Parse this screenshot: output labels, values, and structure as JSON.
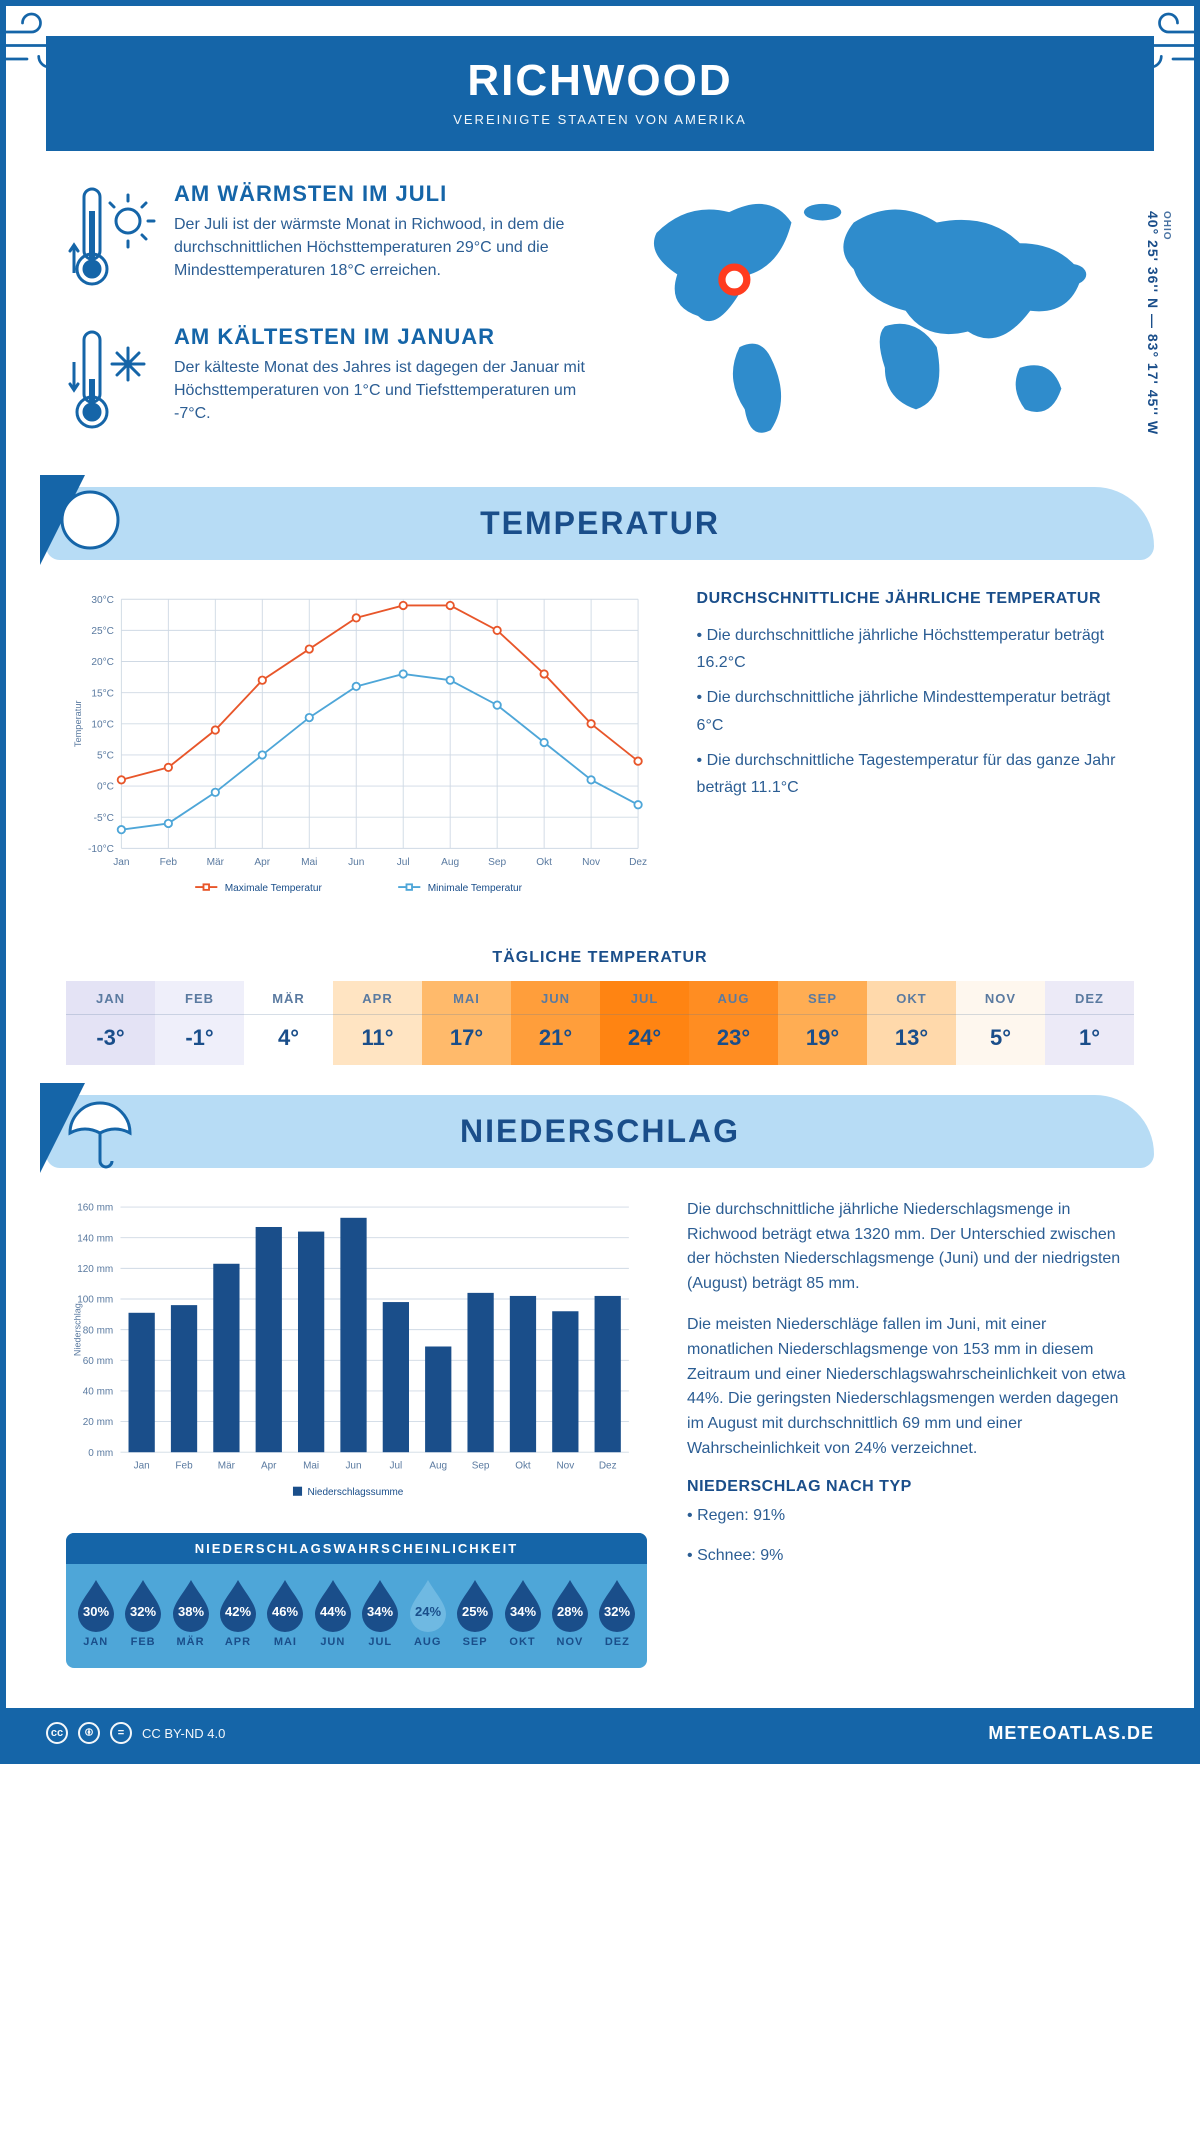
{
  "header": {
    "title": "RICHWOOD",
    "subtitle": "VEREINIGTE STAATEN VON AMERIKA"
  },
  "coordinates": {
    "state": "OHIO",
    "lat": "40° 25' 36'' N",
    "lon": "83° 17' 45'' W"
  },
  "facts": {
    "warm": {
      "title": "AM WÄRMSTEN IM JULI",
      "text": "Der Juli ist der wärmste Monat in Richwood, in dem die durchschnittlichen Höchsttemperaturen 29°C und die Mindesttemperaturen 18°C erreichen."
    },
    "cold": {
      "title": "AM KÄLTESTEN IM JANUAR",
      "text": "Der kälteste Monat des Jahres ist dagegen der Januar mit Höchsttemperaturen von 1°C und Tiefsttemperaturen um -7°C."
    }
  },
  "temperature_section": {
    "banner": "TEMPERATUR",
    "info_title": "DURCHSCHNITTLICHE JÄHRLICHE TEMPERATUR",
    "bullets": [
      "• Die durchschnittliche jährliche Höchsttemperatur beträgt 16.2°C",
      "• Die durchschnittliche jährliche Mindesttemperatur beträgt 6°C",
      "• Die durchschnittliche Tagestemperatur für das ganze Jahr beträgt 11.1°C"
    ],
    "chart": {
      "type": "line",
      "months": [
        "Jan",
        "Feb",
        "Mär",
        "Apr",
        "Mai",
        "Jun",
        "Jul",
        "Aug",
        "Sep",
        "Okt",
        "Nov",
        "Dez"
      ],
      "max_series": {
        "label": "Maximale Temperatur",
        "color": "#e8562a",
        "values": [
          1,
          3,
          9,
          17,
          22,
          27,
          29,
          29,
          25,
          18,
          10,
          4
        ]
      },
      "min_series": {
        "label": "Minimale Temperatur",
        "color": "#4ea6d8",
        "values": [
          -7,
          -6,
          -1,
          5,
          11,
          16,
          18,
          17,
          13,
          7,
          1,
          -3
        ]
      },
      "y_axis": {
        "min": -10,
        "max": 30,
        "step": 5,
        "label": "Temperatur",
        "ticks": [
          "-10°C",
          "-5°C",
          "0°C",
          "5°C",
          "10°C",
          "15°C",
          "20°C",
          "25°C",
          "30°C"
        ]
      },
      "grid_color": "#cfd9e4",
      "background_color": "#ffffff",
      "line_width": 2,
      "marker_size": 4
    },
    "daily_title": "TÄGLICHE TEMPERATUR",
    "daily": [
      {
        "m": "JAN",
        "v": "-3°",
        "bg": "#e4e3f5"
      },
      {
        "m": "FEB",
        "v": "-1°",
        "bg": "#efeffa"
      },
      {
        "m": "MÄR",
        "v": "4°",
        "bg": "#ffffff"
      },
      {
        "m": "APR",
        "v": "11°",
        "bg": "#ffe4c2"
      },
      {
        "m": "MAI",
        "v": "17°",
        "bg": "#ffba6b"
      },
      {
        "m": "JUN",
        "v": "21°",
        "bg": "#ff9e3b"
      },
      {
        "m": "JUL",
        "v": "24°",
        "bg": "#ff8412"
      },
      {
        "m": "AUG",
        "v": "23°",
        "bg": "#ff8d22"
      },
      {
        "m": "SEP",
        "v": "19°",
        "bg": "#ffad53"
      },
      {
        "m": "OKT",
        "v": "13°",
        "bg": "#ffd9ab"
      },
      {
        "m": "NOV",
        "v": "5°",
        "bg": "#fef7ee"
      },
      {
        "m": "DEZ",
        "v": "1°",
        "bg": "#eceaf7"
      }
    ]
  },
  "precip_section": {
    "banner": "NIEDERSCHLAG",
    "chart": {
      "type": "bar",
      "months": [
        "Jan",
        "Feb",
        "Mär",
        "Apr",
        "Mai",
        "Jun",
        "Jul",
        "Aug",
        "Sep",
        "Okt",
        "Nov",
        "Dez"
      ],
      "values": [
        91,
        96,
        123,
        147,
        144,
        153,
        98,
        69,
        104,
        102,
        92,
        102
      ],
      "bar_color": "#1a4e8a",
      "y_axis": {
        "min": 0,
        "max": 160,
        "step": 20,
        "label": "Niederschlag",
        "ticks": [
          "0 mm",
          "20 mm",
          "40 mm",
          "60 mm",
          "80 mm",
          "100 mm",
          "120 mm",
          "140 mm",
          "160 mm"
        ]
      },
      "grid_color": "#cfd9e4",
      "legend": "Niederschlagssumme",
      "bar_width": 0.62
    },
    "text1": "Die durchschnittliche jährliche Niederschlagsmenge in Richwood beträgt etwa 1320 mm. Der Unterschied zwischen der höchsten Niederschlagsmenge (Juni) und der niedrigsten (August) beträgt 85 mm.",
    "text2": "Die meisten Niederschläge fallen im Juni, mit einer monatlichen Niederschlagsmenge von 153 mm in diesem Zeitraum und einer Niederschlagswahrscheinlichkeit von etwa 44%. Die geringsten Niederschlagsmengen werden dagegen im August mit durchschnittlich 69 mm und einer Wahrscheinlichkeit von 24% verzeichnet.",
    "type_title": "NIEDERSCHLAG NACH TYP",
    "type_bullets": [
      "• Regen: 91%",
      "• Schnee: 9%"
    ],
    "probability": {
      "title": "NIEDERSCHLAGSWAHRSCHEINLICHKEIT",
      "months": [
        "JAN",
        "FEB",
        "MÄR",
        "APR",
        "MAI",
        "JUN",
        "JUL",
        "AUG",
        "SEP",
        "OKT",
        "NOV",
        "DEZ"
      ],
      "values": [
        "30%",
        "32%",
        "38%",
        "42%",
        "46%",
        "44%",
        "34%",
        "24%",
        "25%",
        "34%",
        "28%",
        "32%"
      ],
      "drop_dark": "#1a4e8a",
      "drop_light": "#6fb9e2",
      "light_index": 7
    }
  },
  "footer": {
    "license": "CC BY-ND 4.0",
    "brand": "METEOATLAS.DE"
  },
  "colors": {
    "primary": "#1565a8",
    "dark": "#1a4e8a",
    "light_banner": "#b7dcf5",
    "accent": "#4ea6d8"
  }
}
